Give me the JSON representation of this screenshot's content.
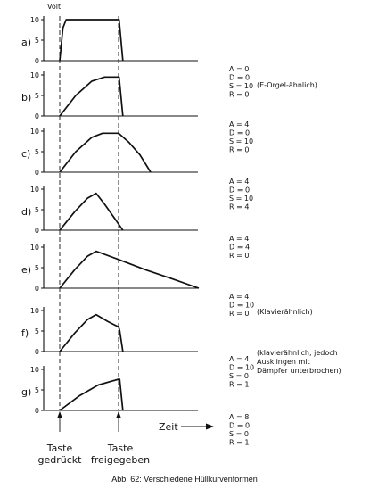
{
  "figure": {
    "y_unit": "Volt",
    "x_label": "Zeit",
    "marker_press": [
      "Taste",
      "gedrückt"
    ],
    "marker_release": [
      "Taste",
      "freigegeben"
    ],
    "caption": "Abb. 62: Verschiedene Hüllkurvenformen"
  },
  "chart_data": [
    {
      "type": "line",
      "label": "a)",
      "ylim": [
        0,
        10
      ],
      "yticks": [
        0,
        5,
        10
      ],
      "x": [
        0,
        0.3,
        0.6,
        5.5,
        5.55,
        5.9
      ],
      "y": [
        0,
        8,
        10,
        10,
        10,
        0
      ],
      "params": [
        "A = 0",
        "D = 0",
        "S = 10",
        "R = 0"
      ],
      "note": [
        "(E-Orgel-ähnlich)"
      ]
    },
    {
      "type": "line",
      "label": "b)",
      "ylim": [
        0,
        10
      ],
      "yticks": [
        0,
        5,
        10
      ],
      "x": [
        0,
        1.5,
        3.0,
        4.2,
        5.5,
        5.55,
        5.9
      ],
      "y": [
        0,
        5,
        8.5,
        9.5,
        9.5,
        9.5,
        0
      ],
      "params": [
        "A = 4",
        "D = 0",
        "S = 10",
        "R = 0"
      ],
      "note": []
    },
    {
      "type": "line",
      "label": "c)",
      "ylim": [
        0,
        10
      ],
      "yticks": [
        0,
        5,
        10
      ],
      "x": [
        0,
        1.5,
        3.0,
        4.0,
        5.5,
        6.5,
        7.5,
        8.5
      ],
      "y": [
        0,
        5,
        8.5,
        9.5,
        9.5,
        7.2,
        4.2,
        0
      ],
      "params": [
        "A = 4",
        "D = 0",
        "S = 10",
        "R = 4"
      ],
      "note": []
    },
    {
      "type": "line",
      "label": "d)",
      "ylim": [
        0,
        10
      ],
      "yticks": [
        0,
        5,
        10
      ],
      "x": [
        0,
        1.4,
        2.6,
        3.4,
        4.2,
        5.1,
        5.9
      ],
      "y": [
        0,
        4.5,
        7.8,
        9.0,
        6.3,
        3.0,
        0
      ],
      "params": [
        "A = 4",
        "D = 4",
        "R = 0"
      ],
      "note": []
    },
    {
      "type": "line",
      "label": "e)",
      "ylim": [
        0,
        10
      ],
      "yticks": [
        0,
        5,
        10
      ],
      "x": [
        0,
        1.4,
        2.6,
        3.4,
        5.5,
        8.0,
        10.5,
        13.0
      ],
      "y": [
        0,
        4.5,
        7.8,
        9.0,
        7.0,
        4.5,
        2.3,
        0
      ],
      "params": [
        "A = 4",
        "D = 10",
        "R = 0"
      ],
      "note": [
        "(Klavierähnlich)"
      ]
    },
    {
      "type": "line",
      "label": "f)",
      "ylim": [
        0,
        10
      ],
      "yticks": [
        0,
        5,
        10
      ],
      "x": [
        0,
        1.4,
        2.6,
        3.4,
        4.5,
        5.5,
        5.6,
        5.9
      ],
      "y": [
        0,
        4.5,
        7.8,
        9.0,
        7.3,
        6.0,
        5.2,
        0
      ],
      "params": [
        "A = 4",
        "D = 10",
        "S = 0",
        "R = 1"
      ],
      "note": [
        "(klavierähnlich, jedoch",
        "Ausklingen mit",
        "Dämpfer unterbrochen)"
      ]
    },
    {
      "type": "line",
      "label": "g)",
      "ylim": [
        0,
        10
      ],
      "yticks": [
        0,
        5,
        10
      ],
      "x": [
        0,
        1.8,
        3.6,
        5.5,
        5.6,
        5.9
      ],
      "y": [
        0,
        3.5,
        6.2,
        7.6,
        7.6,
        0
      ],
      "params": [
        "A = 8",
        "D = 0",
        "S = 0",
        "R = 1"
      ],
      "note": []
    }
  ]
}
